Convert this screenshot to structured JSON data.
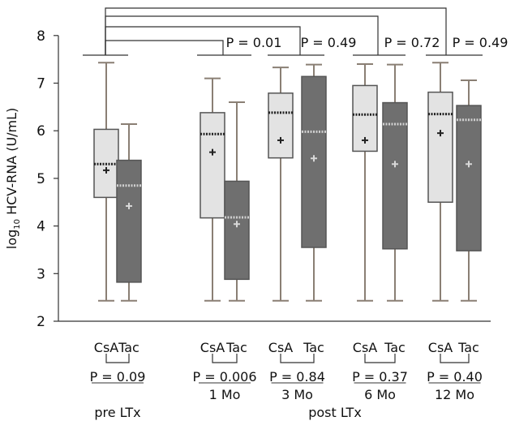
{
  "chart_data": {
    "type": "box",
    "ylabel_sub": "10",
    "ylabel_prefix": "log",
    "ylabel_main": "HCV-RNA (U/mL)",
    "ylim": [
      2,
      8
    ],
    "yticks": [
      2,
      3,
      4,
      5,
      6,
      7,
      8
    ],
    "grid": false,
    "colors": {
      "CsA": "#e3e3e3",
      "Tac": "#6f6f6f"
    },
    "boxes": [
      {
        "group": "pre LTx",
        "label": "CsA",
        "min": 2.43,
        "q1": 4.6,
        "median": 5.3,
        "mean": 5.17,
        "q3": 6.03,
        "max": 7.43
      },
      {
        "group": "pre LTx",
        "label": "Tac",
        "min": 2.43,
        "q1": 2.82,
        "median": 4.85,
        "mean": 4.42,
        "q3": 5.38,
        "max": 6.14
      },
      {
        "group": "1 Mo",
        "label": "CsA",
        "min": 2.43,
        "q1": 4.17,
        "median": 5.93,
        "mean": 5.55,
        "q3": 6.38,
        "max": 7.1
      },
      {
        "group": "1 Mo",
        "label": "Tac",
        "min": 2.43,
        "q1": 2.88,
        "median": 4.18,
        "mean": 4.04,
        "q3": 4.94,
        "max": 6.6
      },
      {
        "group": "3 Mo",
        "label": "CsA",
        "min": 2.43,
        "q1": 5.43,
        "median": 6.38,
        "mean": 5.8,
        "q3": 6.79,
        "max": 7.33
      },
      {
        "group": "3 Mo",
        "label": "Tac",
        "min": 2.43,
        "q1": 3.55,
        "median": 5.98,
        "mean": 5.42,
        "q3": 7.14,
        "max": 7.39
      },
      {
        "group": "6 Mo",
        "label": "CsA",
        "min": 2.43,
        "q1": 5.57,
        "median": 6.34,
        "mean": 5.8,
        "q3": 6.95,
        "max": 7.4
      },
      {
        "group": "6 Mo",
        "label": "Tac",
        "min": 2.43,
        "q1": 3.52,
        "median": 6.14,
        "mean": 5.3,
        "q3": 6.59,
        "max": 7.39
      },
      {
        "group": "12 Mo",
        "label": "CsA",
        "min": 2.43,
        "q1": 4.5,
        "median": 6.35,
        "mean": 5.95,
        "q3": 6.81,
        "max": 7.43
      },
      {
        "group": "12 Mo",
        "label": "Tac",
        "min": 2.43,
        "q1": 3.48,
        "median": 6.23,
        "mean": 5.3,
        "q3": 6.53,
        "max": 7.06
      }
    ],
    "within_group_p": [
      "P = 0.09",
      "P = 0.006",
      "P = 0.84",
      "P = 0.37",
      "P = 0.40"
    ],
    "time_labels": [
      "",
      "1 Mo",
      "3 Mo",
      "6 Mo",
      "12 Mo"
    ],
    "bottom_labels": [
      "pre LTx",
      "post LTx"
    ],
    "comparison_p": [
      "P = 0.01",
      "P = 0.49",
      "P = 0.72",
      "P = 0.49"
    ]
  }
}
